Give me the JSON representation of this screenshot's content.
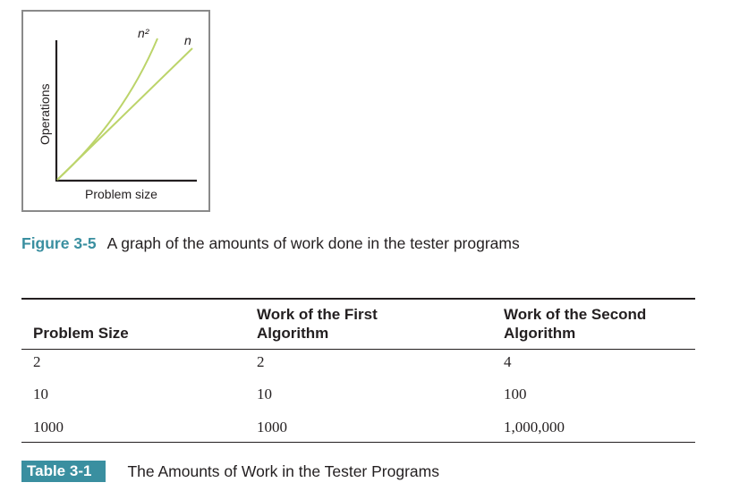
{
  "figure": {
    "curve_n2_label": "n²",
    "curve_n_label": "n",
    "y_axis_label": "Operations",
    "x_axis_label": "Problem size",
    "line_color": "#bcd46a",
    "caption_number": "Figure 3-5",
    "caption_text": "A graph of the amounts of work done in the tester programs",
    "accent_color": "#3a8fa0"
  },
  "table": {
    "headers": [
      "Problem Size",
      "Work of the First Algorithm",
      "Work of the Second Algorithm"
    ],
    "header_lines": [
      [
        "Problem Size"
      ],
      [
        "Work of the First",
        "Algorithm"
      ],
      [
        "Work of the Second",
        "Algorithm"
      ]
    ],
    "rows": [
      [
        "2",
        "2",
        "4"
      ],
      [
        "10",
        "10",
        "100"
      ],
      [
        "1000",
        "1000",
        "1,000,000"
      ]
    ],
    "caption_number": "Table 3-1",
    "caption_text": "The Amounts of Work in the Tester Programs"
  }
}
